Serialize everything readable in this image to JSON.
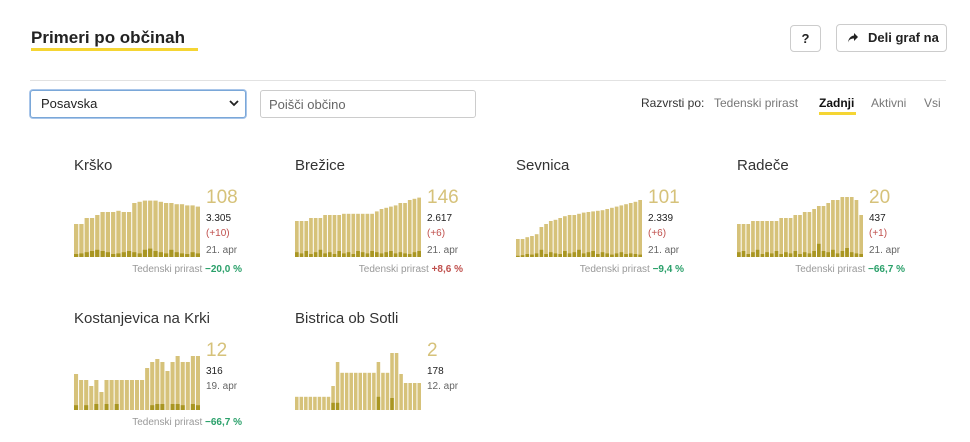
{
  "header": {
    "title": "Primeri po občinah",
    "help_label": "?",
    "share_label": "Deli graf na"
  },
  "controls": {
    "region_selected": "Posavska",
    "search_placeholder": "Poišči občino",
    "sort_label": "Razvrsti po:",
    "sort_options": [
      "Tedenski prirast",
      "Zadnji",
      "Aktivni",
      "Vsi"
    ],
    "sort_active": "Zadnji"
  },
  "colors": {
    "accent": "#f5d533",
    "bar": "#d6c27a",
    "bar_dark": "#a99622",
    "negative": "#2aa06a",
    "positive": "#c0504d"
  },
  "weekly_label": "Tedenski prirast",
  "cards": [
    {
      "name": "Krško",
      "big": "108",
      "total": "3.305",
      "delta": "(+10)",
      "date": "21. apr",
      "weekly": "−20,0 %",
      "weekly_sign": "neg",
      "series": [
        0.55,
        0.55,
        0.65,
        0.65,
        0.7,
        0.75,
        0.75,
        0.75,
        0.77,
        0.75,
        0.75,
        0.9,
        0.92,
        0.94,
        0.94,
        0.94,
        0.92,
        0.9,
        0.9,
        0.88,
        0.88,
        0.86,
        0.86,
        0.84
      ],
      "dark": [
        0.05,
        0.06,
        0.08,
        0.1,
        0.12,
        0.1,
        0.08,
        0.05,
        0.06,
        0.08,
        0.1,
        0.08,
        0.06,
        0.12,
        0.14,
        0.1,
        0.08,
        0.06,
        0.12,
        0.08,
        0.06,
        0.05,
        0.08,
        0.06
      ]
    },
    {
      "name": "Brežice",
      "big": "146",
      "total": "2.617",
      "delta": "(+6)",
      "date": "21. apr",
      "weekly": "+8,6 %",
      "weekly_sign": "pos",
      "series": [
        0.6,
        0.6,
        0.6,
        0.65,
        0.65,
        0.65,
        0.7,
        0.7,
        0.7,
        0.7,
        0.72,
        0.72,
        0.72,
        0.72,
        0.72,
        0.72,
        0.72,
        0.76,
        0.8,
        0.82,
        0.84,
        0.86,
        0.9,
        0.9,
        0.95,
        0.97,
        0.99
      ],
      "dark": [
        0.08,
        0.06,
        0.1,
        0.05,
        0.08,
        0.12,
        0.06,
        0.08,
        0.05,
        0.1,
        0.06,
        0.08,
        0.05,
        0.1,
        0.08,
        0.06,
        0.1,
        0.08,
        0.06,
        0.08,
        0.1,
        0.06,
        0.08,
        0.06,
        0.05,
        0.08,
        0.1
      ]
    },
    {
      "name": "Sevnica",
      "big": "101",
      "total": "2.339",
      "delta": "(+6)",
      "date": "21. apr",
      "weekly": "−9,4 %",
      "weekly_sign": "neg",
      "series": [
        0.3,
        0.3,
        0.33,
        0.35,
        0.38,
        0.5,
        0.55,
        0.6,
        0.62,
        0.65,
        0.68,
        0.7,
        0.7,
        0.72,
        0.74,
        0.75,
        0.76,
        0.77,
        0.78,
        0.8,
        0.82,
        0.84,
        0.86,
        0.88,
        0.9,
        0.92,
        0.95
      ],
      "dark": [
        0.02,
        0.03,
        0.05,
        0.04,
        0.06,
        0.12,
        0.05,
        0.08,
        0.06,
        0.05,
        0.1,
        0.06,
        0.08,
        0.12,
        0.06,
        0.08,
        0.1,
        0.05,
        0.08,
        0.06,
        0.04,
        0.06,
        0.08,
        0.05,
        0.06,
        0.05,
        0.04
      ]
    },
    {
      "name": "Radeče",
      "big": "20",
      "total": "437",
      "delta": "(+1)",
      "date": "21. apr",
      "weekly": "−66,7 %",
      "weekly_sign": "neg",
      "series": [
        0.55,
        0.55,
        0.55,
        0.6,
        0.6,
        0.6,
        0.6,
        0.6,
        0.6,
        0.65,
        0.65,
        0.65,
        0.7,
        0.7,
        0.75,
        0.75,
        0.8,
        0.85,
        0.85,
        0.9,
        0.95,
        0.95,
        1.0,
        1.0,
        1.0,
        0.95,
        0.7
      ],
      "dark": [
        0.08,
        0.1,
        0.05,
        0.08,
        0.12,
        0.05,
        0.08,
        0.06,
        0.1,
        0.05,
        0.08,
        0.06,
        0.1,
        0.05,
        0.08,
        0.06,
        0.1,
        0.22,
        0.1,
        0.08,
        0.12,
        0.06,
        0.1,
        0.15,
        0.08,
        0.06,
        0.05
      ]
    },
    {
      "name": "Kostanjevica na Krki",
      "big": "12",
      "total": "316",
      "delta": "",
      "date": "19. apr",
      "weekly": "−66,7 %",
      "weekly_sign": "neg",
      "series": [
        0.6,
        0.5,
        0.5,
        0.4,
        0.5,
        0.3,
        0.5,
        0.5,
        0.5,
        0.5,
        0.5,
        0.5,
        0.5,
        0.5,
        0.7,
        0.8,
        0.85,
        0.8,
        0.65,
        0.8,
        0.9,
        0.8,
        0.8,
        0.9,
        0.9
      ],
      "dark": [
        0.08,
        0.0,
        0.08,
        0.0,
        0.1,
        0.0,
        0.1,
        0.0,
        0.1,
        0.0,
        0.0,
        0.0,
        0.0,
        0.0,
        0.0,
        0.08,
        0.1,
        0.1,
        0.0,
        0.1,
        0.1,
        0.08,
        0.0,
        0.1,
        0.08
      ]
    },
    {
      "name": "Bistrica ob Sotli",
      "big": "2",
      "total": "178",
      "delta": "",
      "date": "12. apr",
      "weekly": "",
      "weekly_sign": "neg",
      "series": [
        0.22,
        0.22,
        0.22,
        0.22,
        0.22,
        0.22,
        0.22,
        0.22,
        0.4,
        0.8,
        0.62,
        0.62,
        0.62,
        0.62,
        0.62,
        0.62,
        0.62,
        0.62,
        0.8,
        0.62,
        0.62,
        0.95,
        0.95,
        0.6,
        0.45,
        0.45,
        0.45,
        0.45
      ],
      "dark": [
        0,
        0,
        0,
        0,
        0,
        0,
        0,
        0,
        0.12,
        0.12,
        0.0,
        0.0,
        0.0,
        0.0,
        0.0,
        0.0,
        0.0,
        0.0,
        0.22,
        0.0,
        0.0,
        0.2,
        0.0,
        0.0,
        0.0,
        0.0,
        0.0,
        0.0
      ]
    }
  ]
}
